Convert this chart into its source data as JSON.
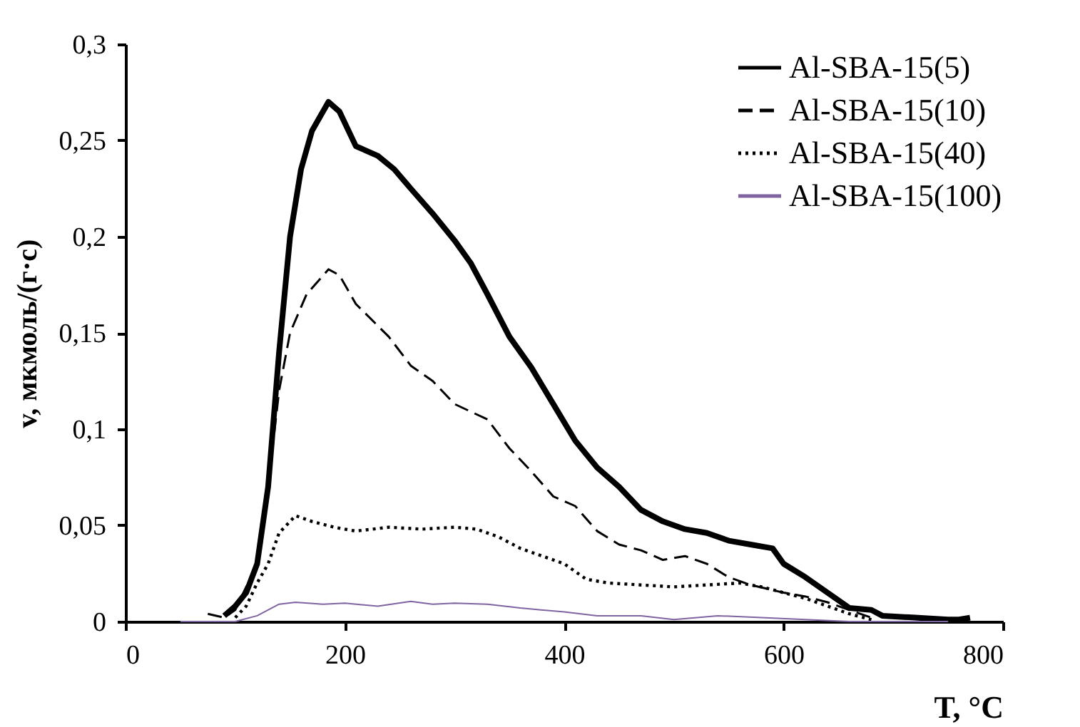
{
  "chart_data": {
    "type": "line",
    "xlabel": "T, °C",
    "ylabel": "v, мкмоль/(г·с)",
    "xlim": [
      0,
      800
    ],
    "xticks": [
      0,
      200,
      400,
      600,
      800
    ],
    "ylim": [
      0,
      0.3
    ],
    "yticks": [
      0,
      {
        "value": 0.05,
        "label": "0,05"
      },
      {
        "value": 0.1,
        "label": "0,1"
      },
      {
        "value": 0.15,
        "label": "0,15"
      },
      {
        "value": 0.2,
        "label": "0,2"
      },
      {
        "value": 0.25,
        "label": "0,25"
      },
      {
        "value": 0.3,
        "label": "0,3"
      }
    ],
    "grid": false,
    "legend": "top right",
    "marker": "none",
    "series": [
      {
        "name": "Al-SBA-15(5)",
        "color": "#000000",
        "line_style": "solid",
        "x": [
          90,
          100,
          110,
          120,
          130,
          140,
          150,
          160,
          170,
          185,
          195,
          210,
          230,
          245,
          260,
          280,
          300,
          315,
          330,
          350,
          370,
          390,
          410,
          430,
          450,
          470,
          490,
          510,
          530,
          550,
          570,
          590,
          600,
          620,
          640,
          660,
          680,
          690,
          720,
          750,
          760,
          770
        ],
        "values": [
          0.003,
          0.008,
          0.015,
          0.03,
          0.07,
          0.14,
          0.2,
          0.235,
          0.255,
          0.27,
          0.265,
          0.247,
          0.242,
          0.235,
          0.225,
          0.212,
          0.198,
          0.186,
          0.17,
          0.148,
          0.132,
          0.113,
          0.094,
          0.08,
          0.07,
          0.058,
          0.052,
          0.048,
          0.046,
          0.042,
          0.04,
          0.038,
          0.03,
          0.023,
          0.015,
          0.007,
          0.006,
          0.003,
          0.002,
          0.001,
          0.001,
          0.002
        ]
      },
      {
        "name": "Al-SBA-15(10)",
        "color": "#000000",
        "line_style": "dashed",
        "x": [
          75,
          90,
          100,
          120,
          130,
          140,
          150,
          165,
          185,
          195,
          210,
          240,
          260,
          280,
          300,
          330,
          350,
          370,
          390,
          410,
          430,
          450,
          470,
          490,
          510,
          530,
          550,
          570,
          600,
          620,
          640,
          660,
          680
        ],
        "values": [
          0.004,
          0.002,
          0.006,
          0.03,
          0.07,
          0.12,
          0.15,
          0.17,
          0.183,
          0.18,
          0.165,
          0.148,
          0.133,
          0.125,
          0.113,
          0.105,
          0.09,
          0.078,
          0.065,
          0.06,
          0.047,
          0.04,
          0.037,
          0.032,
          0.034,
          0.03,
          0.023,
          0.019,
          0.015,
          0.013,
          0.01,
          0.006,
          0.002
        ]
      },
      {
        "name": "Al-SBA-15(40)",
        "color": "#000000",
        "line_style": "dotted",
        "x": [
          100,
          110,
          120,
          130,
          140,
          155,
          170,
          190,
          210,
          240,
          270,
          300,
          320,
          340,
          360,
          380,
          400,
          420,
          440,
          470,
          500,
          530,
          560,
          580,
          600,
          620,
          640,
          660,
          680
        ],
        "values": [
          0.002,
          0.008,
          0.02,
          0.03,
          0.046,
          0.055,
          0.052,
          0.049,
          0.047,
          0.049,
          0.048,
          0.049,
          0.048,
          0.044,
          0.038,
          0.034,
          0.03,
          0.022,
          0.02,
          0.019,
          0.018,
          0.019,
          0.02,
          0.018,
          0.015,
          0.012,
          0.008,
          0.004,
          0.001
        ]
      },
      {
        "name": "Al-SBA-15(100)",
        "color": "#8064a2",
        "line_style": "solid",
        "x": [
          50,
          100,
          120,
          140,
          155,
          180,
          200,
          230,
          260,
          280,
          300,
          330,
          360,
          400,
          430,
          470,
          500,
          540,
          580,
          620,
          660,
          750
        ],
        "values": [
          0,
          0,
          0.003,
          0.009,
          0.01,
          0.009,
          0.0095,
          0.008,
          0.0105,
          0.009,
          0.0095,
          0.009,
          0.007,
          0.005,
          0.003,
          0.003,
          0.001,
          0.003,
          0.002,
          0.001,
          0,
          0
        ]
      }
    ]
  }
}
